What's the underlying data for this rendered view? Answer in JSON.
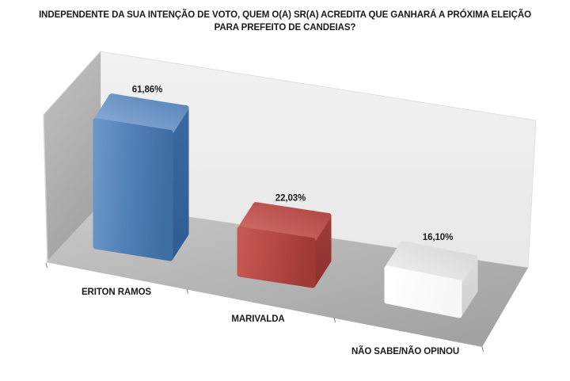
{
  "page": {
    "background": "#FFFFFF"
  },
  "title": {
    "line1": "INDEPENDENTE DA SUA INTENÇÃO DE VOTO, QUEM O(A) SR(A) ACREDITA QUE GANHARÁ A PRÓXIMA ELEIÇÃO",
    "line2": "PARA PREFEITO DE CANDEIAS?"
  },
  "chart_data": {
    "type": "bar",
    "subtype": "3d-column",
    "title": "INDEPENDENTE DA SUA INTENÇÃO DE VOTO, QUEM O(A) SR(A) ACREDITA QUE GANHARÁ A PRÓXIMA ELEIÇÃO PARA PREFEITO DE CANDEIAS?",
    "categories": [
      "ERITON RAMOS",
      "MARIVALDA",
      "NÃO SABE/NÃO OPINOU"
    ],
    "values": [
      61.86,
      22.03,
      16.1
    ],
    "value_labels": [
      "61,86%",
      "22,03%",
      "16,10%"
    ],
    "bar_colors": [
      "#4F81BD",
      "#BE4B48",
      "#FFFFFF"
    ],
    "legend": "none",
    "gridlines": false,
    "value_axis_visible": false,
    "back_wall_color": "#EFEFEF",
    "side_wall_color": "#AFAFAF",
    "floor_color": "#ABABAB",
    "label_color": "#1A1A1A"
  }
}
